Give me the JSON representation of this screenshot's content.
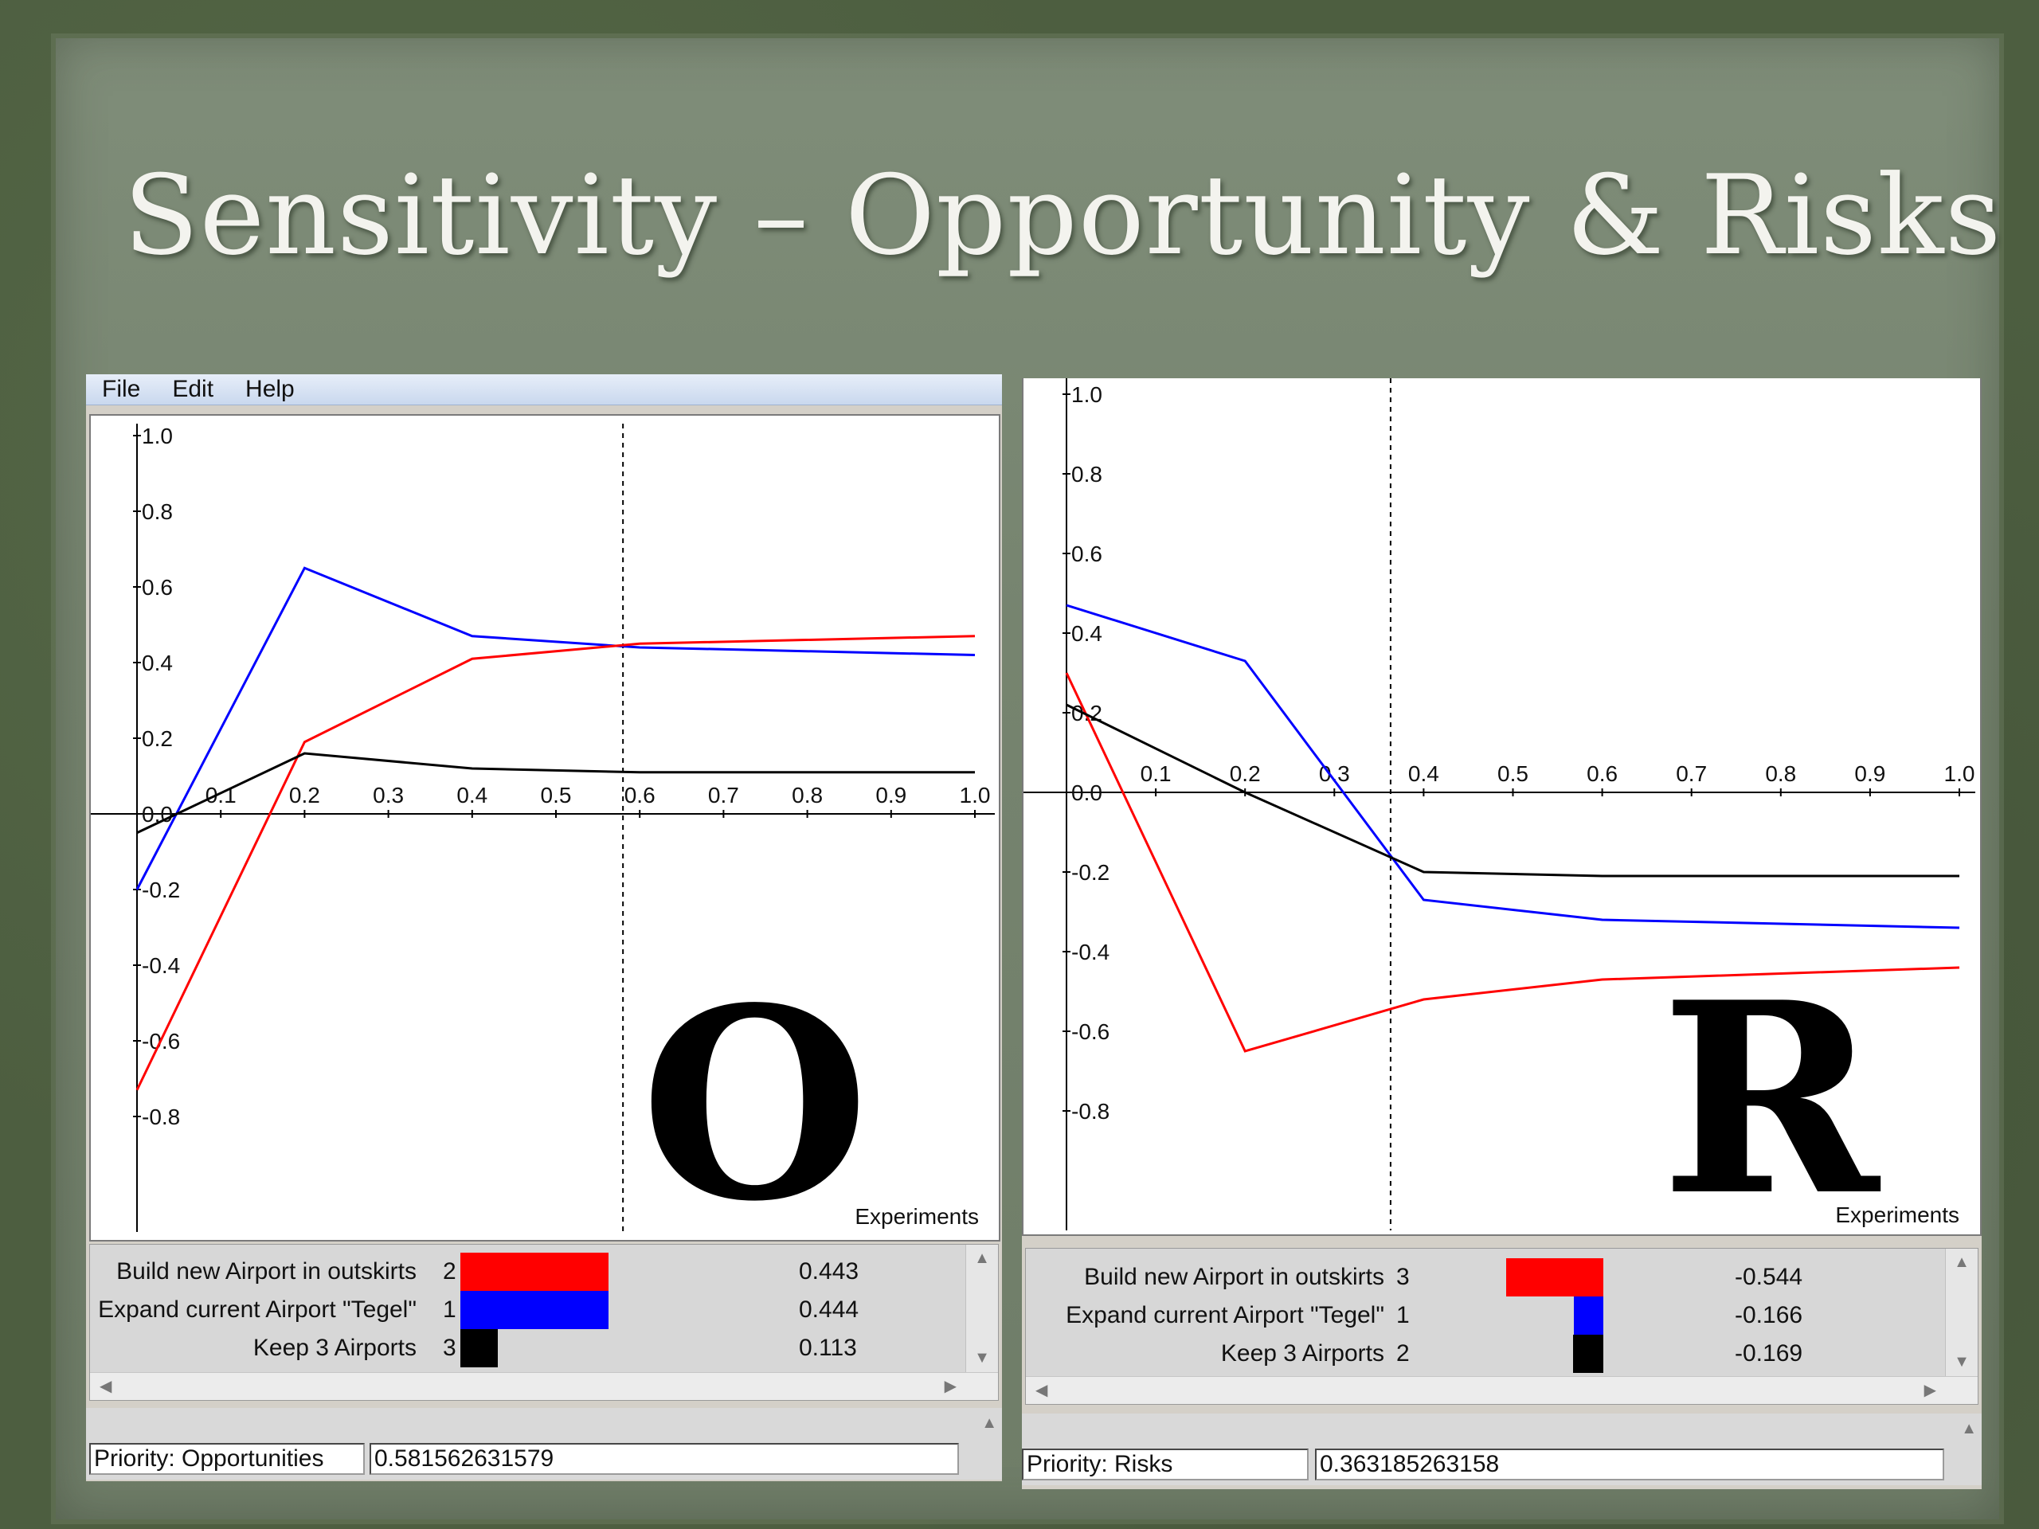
{
  "slide": {
    "title": "Sensitivity – Opportunity & Risks"
  },
  "window": {
    "menu": [
      "File",
      "Edit",
      "Help"
    ]
  },
  "opportunities": {
    "letter": "O",
    "x_axis_label": "Experiments",
    "priority_label": "Priority: Opportunities",
    "priority_value": "0.581562631579",
    "legend": [
      {
        "name": "Build new Airport in outskirts",
        "rank": "2",
        "value": "0.443",
        "color": "#ff0000",
        "share": 0.443
      },
      {
        "name": "Expand current Airport \"Tegel\"",
        "rank": "1",
        "value": "0.444",
        "color": "#0000ff",
        "share": 0.444
      },
      {
        "name": "Keep 3 Airports",
        "rank": "3",
        "value": "0.113",
        "color": "#000000",
        "share": 0.113
      }
    ],
    "chart_data": {
      "type": "line",
      "x_ticks": [
        "0.1",
        "0.2",
        "0.3",
        "0.4",
        "0.5",
        "0.6",
        "0.7",
        "0.8",
        "0.9",
        "1.0"
      ],
      "y_ticks": [
        "1.0",
        "0.8",
        "0.6",
        "0.4",
        "0.2",
        "0.0",
        "-0.2",
        "-0.4",
        "-0.6",
        "-0.8"
      ],
      "xlim": [
        0,
        1.0
      ],
      "ylim": [
        -1.1,
        1.1
      ],
      "current_x": 0.58,
      "series": [
        {
          "color": "#0000ff",
          "x": [
            0,
            0.2,
            0.4,
            0.6,
            1.0
          ],
          "y": [
            -0.2,
            0.65,
            0.47,
            0.44,
            0.42
          ]
        },
        {
          "color": "#ff0000",
          "x": [
            0,
            0.2,
            0.4,
            0.6,
            1.0
          ],
          "y": [
            -0.73,
            0.19,
            0.41,
            0.45,
            0.47
          ]
        },
        {
          "color": "#000000",
          "x": [
            0,
            0.2,
            0.4,
            0.6,
            1.0
          ],
          "y": [
            -0.05,
            0.16,
            0.12,
            0.11,
            0.11
          ]
        }
      ]
    }
  },
  "risks": {
    "letter": "R",
    "x_axis_label": "Experiments",
    "priority_label": "Priority: Risks",
    "priority_value": "0.363185263158",
    "legend": [
      {
        "name": "Build new Airport in outskirts",
        "rank": "3",
        "value": "-0.544",
        "color": "#ff0000",
        "share": -0.544
      },
      {
        "name": "Expand current Airport \"Tegel\"",
        "rank": "1",
        "value": "-0.166",
        "color": "#0000ff",
        "share": -0.166
      },
      {
        "name": "Keep 3 Airports",
        "rank": "2",
        "value": "-0.169",
        "color": "#000000",
        "share": -0.169
      }
    ],
    "chart_data": {
      "type": "line",
      "x_ticks": [
        "0.1",
        "0.2",
        "0.3",
        "0.4",
        "0.5",
        "0.6",
        "0.7",
        "0.8",
        "0.9",
        "1.0"
      ],
      "y_ticks": [
        "1.0",
        "0.8",
        "0.6",
        "0.4",
        "0.2",
        "0.0",
        "-0.2",
        "-0.4",
        "-0.6",
        "-0.8"
      ],
      "xlim": [
        0,
        1.0
      ],
      "ylim": [
        -1.0,
        1.0
      ],
      "current_x": 0.363,
      "series": [
        {
          "color": "#0000ff",
          "x": [
            0,
            0.2,
            0.4,
            0.6,
            1.0
          ],
          "y": [
            0.47,
            0.33,
            -0.27,
            -0.32,
            -0.34
          ]
        },
        {
          "color": "#ff0000",
          "x": [
            0,
            0.2,
            0.4,
            0.6,
            1.0
          ],
          "y": [
            0.3,
            -0.65,
            -0.52,
            -0.47,
            -0.44
          ]
        },
        {
          "color": "#000000",
          "x": [
            0,
            0.2,
            0.4,
            0.6,
            1.0
          ],
          "y": [
            0.22,
            0.0,
            -0.2,
            -0.21,
            -0.21
          ]
        }
      ]
    }
  }
}
